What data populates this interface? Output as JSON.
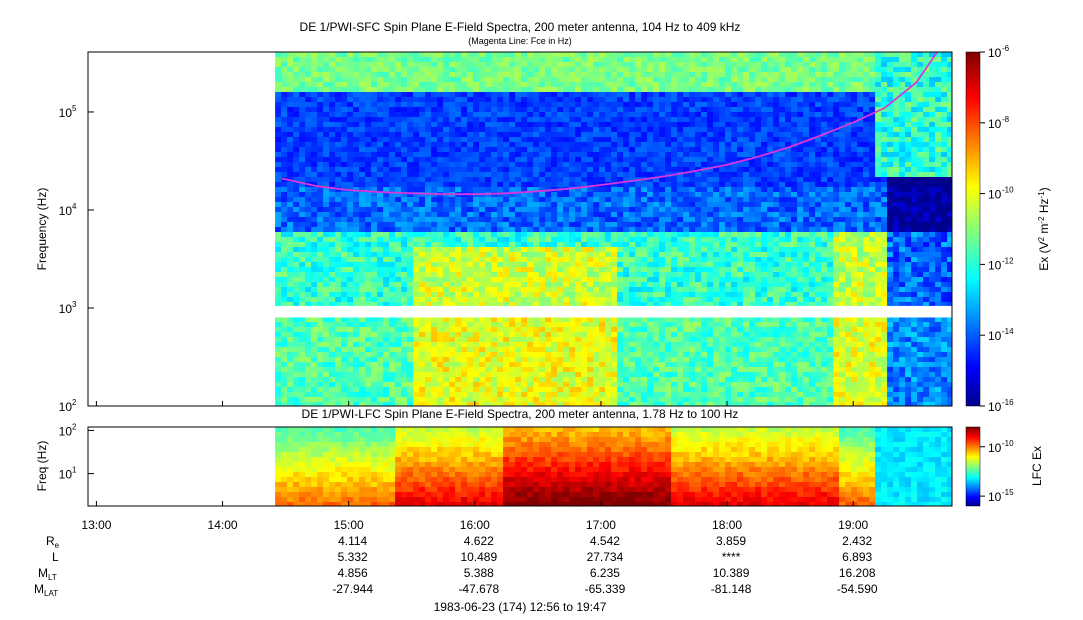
{
  "chart_data": [
    {
      "type": "heatmap",
      "title": "DE 1/PWI-SFC  Spin Plane E-Field Spectra, 200 meter antenna, 104 Hz to 409 kHz",
      "subtitle": "(Magenta Line: Fce in Hz)",
      "ylabel": "Frequency (Hz)",
      "yscale": "log",
      "ylim": [
        100,
        409000
      ],
      "yticks": [
        {
          "base": "10",
          "exp": "2"
        },
        {
          "base": "10",
          "exp": "3"
        },
        {
          "base": "10",
          "exp": "4"
        },
        {
          "base": "10",
          "exp": "5"
        }
      ],
      "xlim": [
        "12:56",
        "19:47"
      ],
      "data_start": "14:25",
      "data_gap_hz": [
        800,
        1050
      ],
      "colorbar": {
        "label_parts": [
          "Ex (V",
          "2",
          " m",
          "-2",
          " Hz",
          "-1",
          ")"
        ],
        "scale": "log",
        "range": [
          1e-16,
          1e-06
        ],
        "ticks": [
          {
            "base": "10",
            "exp": "-6"
          },
          {
            "base": "10",
            "exp": "-8"
          },
          {
            "base": "10",
            "exp": "-10"
          },
          {
            "base": "10",
            "exp": "-12"
          },
          {
            "base": "10",
            "exp": "-14"
          },
          {
            "base": "10",
            "exp": "-16"
          }
        ]
      },
      "series": [
        {
          "name": "Fce",
          "color": "#d838d8",
          "x": [
            "14:28",
            "14:45",
            "15:00",
            "15:15",
            "15:30",
            "15:45",
            "16:00",
            "16:15",
            "16:30",
            "16:45",
            "17:00",
            "17:15",
            "17:30",
            "17:45",
            "18:00",
            "18:15",
            "18:30",
            "18:45",
            "19:00",
            "19:15",
            "19:30",
            "19:40"
          ],
          "y": [
            21000,
            17500,
            16000,
            15200,
            14800,
            14500,
            14500,
            14800,
            15500,
            16500,
            18000,
            19800,
            22000,
            25000,
            29000,
            35000,
            44000,
            58000,
            78000,
            110000,
            200000,
            409000
          ]
        }
      ]
    },
    {
      "type": "heatmap",
      "title": "DE 1/PWI-LFC  Spin Plane E-Field Spectra, 200 meter antenna, 1.78 Hz to 100 Hz",
      "ylabel": "Freq (Hz)",
      "yscale": "log",
      "ylim": [
        1.78,
        120
      ],
      "yticks": [
        {
          "base": "10",
          "exp": "1"
        },
        {
          "base": "10",
          "exp": "2"
        }
      ],
      "xlim": [
        "12:56",
        "19:47"
      ],
      "data_start": "14:25",
      "colorbar": {
        "label": "LFC Ex",
        "scale": "log",
        "range": [
          1e-16,
          1e-08
        ],
        "ticks": [
          {
            "base": "10",
            "exp": "-10"
          },
          {
            "base": "10",
            "exp": "-15"
          }
        ]
      }
    }
  ],
  "time_axis": {
    "ticks": [
      "13:00",
      "14:00",
      "15:00",
      "16:00",
      "17:00",
      "18:00",
      "19:00"
    ]
  },
  "ephemeris": {
    "rows": [
      {
        "label_main": "R",
        "label_sub": "e",
        "values": [
          "4.114",
          "4.622",
          "4.542",
          "3.859",
          "2.432"
        ]
      },
      {
        "label_main": "L",
        "label_sub": "",
        "values": [
          "5.332",
          "10.489",
          "27.734",
          "****",
          "6.893"
        ]
      },
      {
        "label_main": "M",
        "label_sub": "LT",
        "values": [
          "4.856",
          "5.388",
          "6.235",
          "10.389",
          "16.208"
        ]
      },
      {
        "label_main": "M",
        "label_sub": "LAT",
        "values": [
          "-27.944",
          "-47.678",
          "-65.339",
          "-81.148",
          "-54.590"
        ]
      }
    ],
    "value_times": [
      "15:00",
      "16:00",
      "17:00",
      "18:00",
      "19:00"
    ]
  },
  "footer": "1983-06-23 (174) 12:56 to 19:47"
}
